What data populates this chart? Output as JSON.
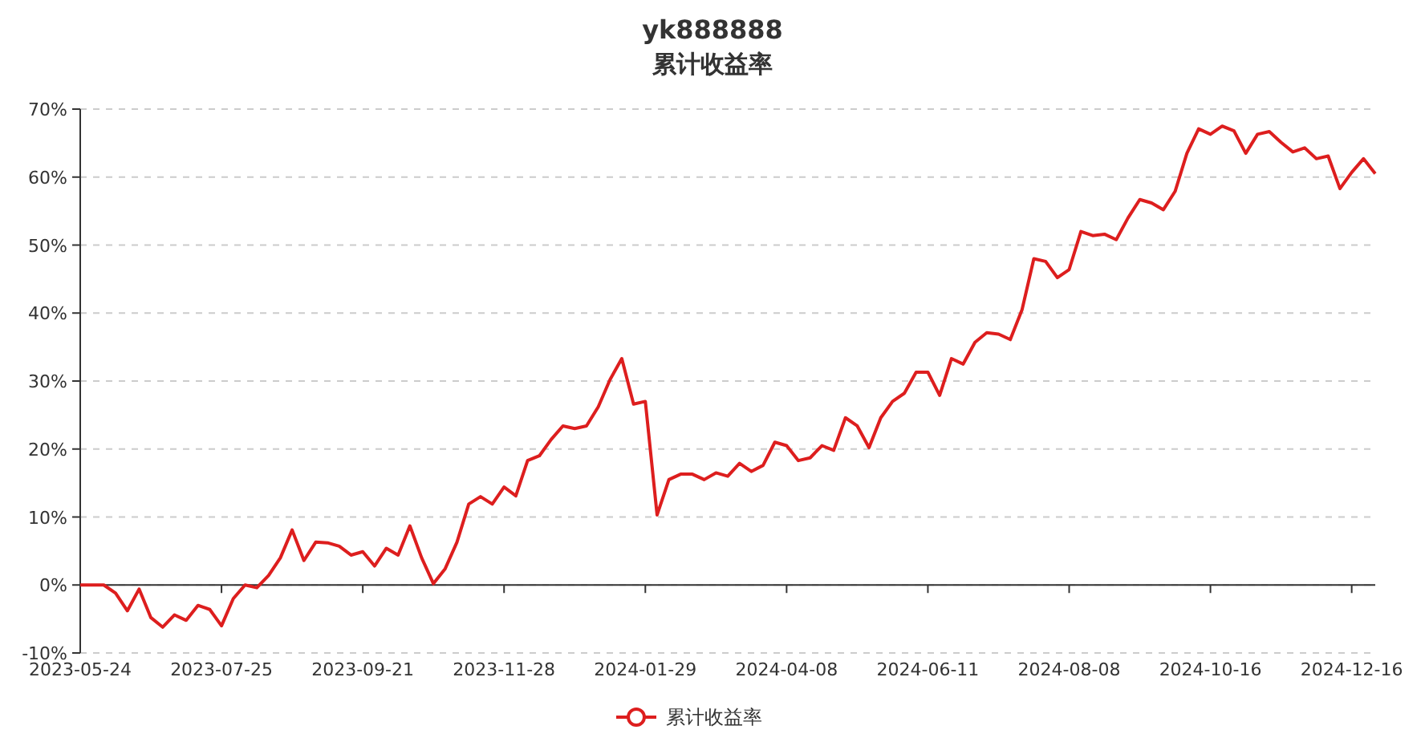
{
  "chart_data": {
    "type": "line",
    "title": "yk888888",
    "subtitle": "累计收益率",
    "categories": [
      "2023-05-24",
      null,
      null,
      null,
      null,
      null,
      null,
      null,
      null,
      null,
      null,
      null,
      "2023-07-25",
      null,
      null,
      null,
      null,
      null,
      null,
      null,
      null,
      null,
      null,
      null,
      "2023-09-21",
      null,
      null,
      null,
      null,
      null,
      null,
      null,
      null,
      null,
      null,
      null,
      "2023-11-28",
      null,
      null,
      null,
      null,
      null,
      null,
      null,
      null,
      null,
      null,
      null,
      "2024-01-29",
      null,
      null,
      null,
      null,
      null,
      null,
      null,
      null,
      null,
      null,
      null,
      "2024-04-08",
      null,
      null,
      null,
      null,
      null,
      null,
      null,
      null,
      null,
      null,
      null,
      "2024-06-11",
      null,
      null,
      null,
      null,
      null,
      null,
      null,
      null,
      null,
      null,
      null,
      "2024-08-08",
      null,
      null,
      null,
      null,
      null,
      null,
      null,
      null,
      null,
      null,
      null,
      "2024-10-16",
      null,
      null,
      null,
      null,
      null,
      null,
      null,
      null,
      null,
      null,
      null,
      "2024-12-16",
      null,
      null
    ],
    "series": [
      {
        "name": "累计收益率",
        "color": "#dd1e1e",
        "values": [
          0,
          0,
          0,
          -1.2,
          -3.8,
          -0.6,
          -4.8,
          -6.2,
          -4.4,
          -5.2,
          -3.0,
          -3.6,
          -6.0,
          -2.0,
          0,
          -0.4,
          1.4,
          4.0,
          8.1,
          3.6,
          6.3,
          6.2,
          5.7,
          4.4,
          4.9,
          2.8,
          5.4,
          4.4,
          8.7,
          4.0,
          0.2,
          2.4,
          6.3,
          11.9,
          13.0,
          11.9,
          14.4,
          13.1,
          18.3,
          19.0,
          21.4,
          23.4,
          23.0,
          23.4,
          26.2,
          30.2,
          33.3,
          26.6,
          27.0,
          10.3,
          15.5,
          16.3,
          16.3,
          15.5,
          16.5,
          16.0,
          17.9,
          16.7,
          17.6,
          21.0,
          20.5,
          18.3,
          18.7,
          20.5,
          19.8,
          24.6,
          23.4,
          20.2,
          24.6,
          27.0,
          28.2,
          31.3,
          31.3,
          27.9,
          33.3,
          32.5,
          35.7,
          37.1,
          36.9,
          36.1,
          40.5,
          48.0,
          47.6,
          45.2,
          46.4,
          52.0,
          51.4,
          51.6,
          50.8,
          54.0,
          56.7,
          56.2,
          55.2,
          57.9,
          63.5,
          67.1,
          66.3,
          67.5,
          66.8,
          63.5,
          66.3,
          66.7,
          65.1,
          63.7,
          64.3,
          62.7,
          63.1,
          58.3,
          60.7,
          62.7,
          60.5
        ]
      }
    ],
    "ylim": [
      -10,
      70
    ],
    "yticks": [
      {
        "value": -10,
        "label": "-10%"
      },
      {
        "value": 0,
        "label": "0%"
      },
      {
        "value": 10,
        "label": "10%"
      },
      {
        "value": 20,
        "label": "20%"
      },
      {
        "value": 30,
        "label": "30%"
      },
      {
        "value": 40,
        "label": "40%"
      },
      {
        "value": 50,
        "label": "50%"
      },
      {
        "value": 60,
        "label": "60%"
      },
      {
        "value": 70,
        "label": "70%"
      }
    ],
    "grid": "y",
    "legend": "bottom",
    "marker": "none",
    "line_style": "solid"
  }
}
